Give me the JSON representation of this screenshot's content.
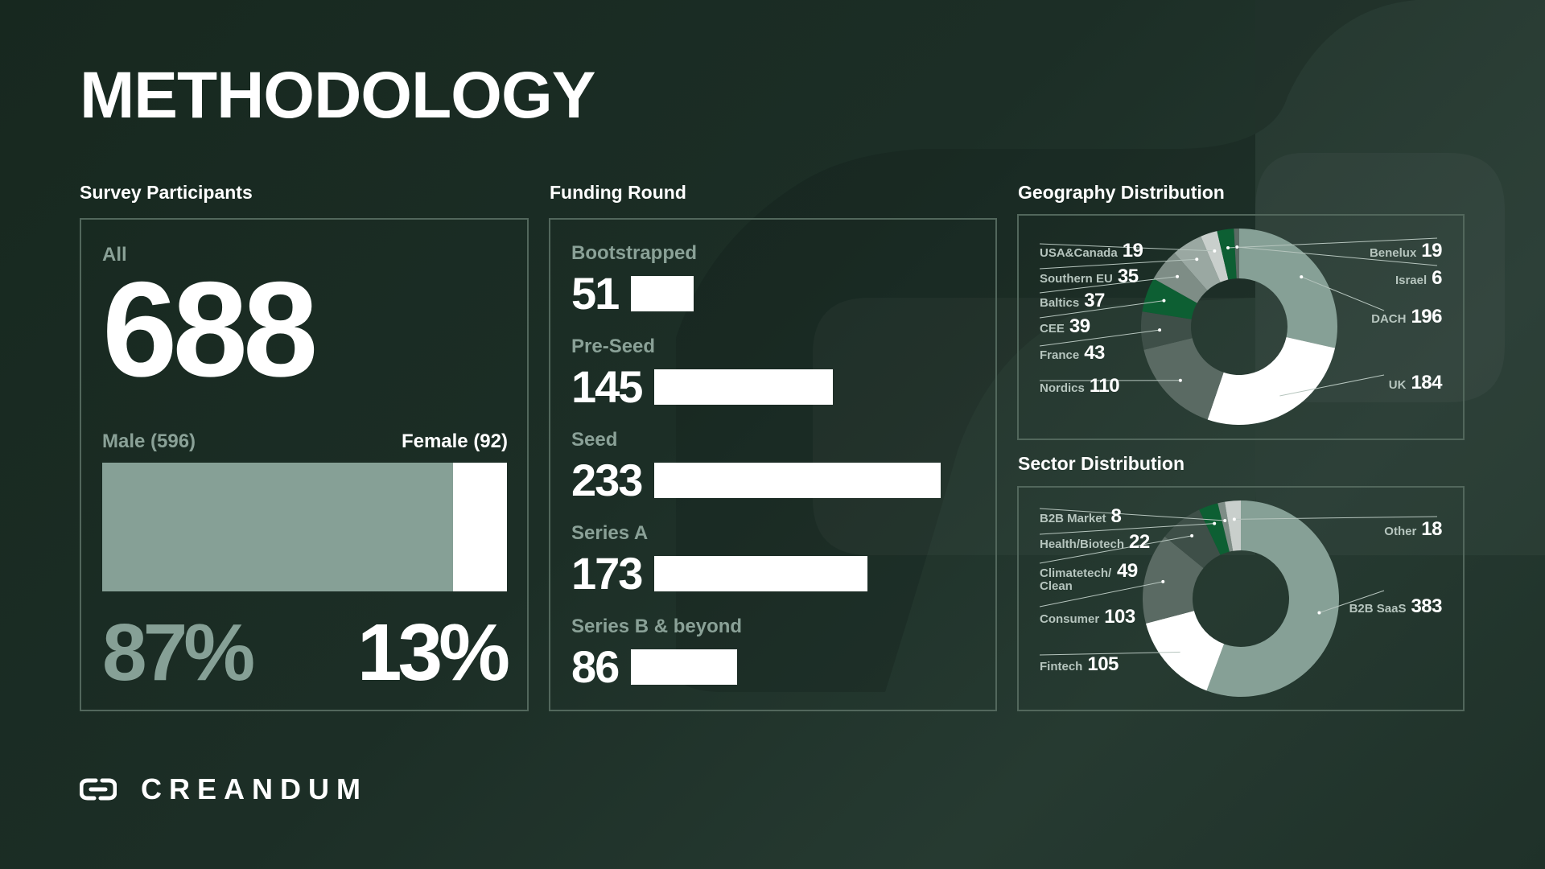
{
  "page": {
    "title": "METHODOLOGY"
  },
  "colors": {
    "light_green": "#86a096",
    "white": "#ffffff",
    "dark_grey": "#5a6a63",
    "light_grey": "#c9cfcc",
    "mid_grey": "#7e8d86",
    "green": "#0d5f33",
    "border": "#52675c"
  },
  "survey": {
    "section_label": "Survey Participants",
    "all_label": "All",
    "all_value": "688",
    "male_label": "Male (596)",
    "female_label": "Female (92)",
    "male_pct": "87%",
    "female_pct": "13%"
  },
  "funding": {
    "section_label": "Funding Round"
  },
  "geography": {
    "section_label": "Geography Distribution"
  },
  "sector": {
    "section_label": "Sector Distribution"
  },
  "logo": {
    "text": "CREANDUM",
    "icon": "chain-link-icon"
  },
  "chart_data": [
    {
      "type": "bar",
      "title": "Survey Participants",
      "categories": [
        "Male (596)",
        "Female (92)"
      ],
      "values": [
        596,
        92
      ],
      "total": 688
    },
    {
      "type": "bar",
      "title": "Funding Round",
      "categories": [
        "Bootstrapped",
        "Pre-Seed",
        "Seed",
        "Series A",
        "Series B & beyond"
      ],
      "values": [
        51,
        145,
        233,
        173,
        86
      ]
    },
    {
      "type": "pie",
      "title": "Geography Distribution",
      "categories": [
        "DACH",
        "UK",
        "Nordics",
        "France",
        "CEE",
        "Baltics",
        "Southern EU",
        "USA&Canada",
        "Benelux",
        "Israel"
      ],
      "values": [
        196,
        184,
        110,
        43,
        39,
        37,
        35,
        19,
        19,
        6
      ],
      "colors": [
        "#86a096",
        "#ffffff",
        "#5a6a63",
        "#3e4f48",
        "#0d5f33",
        "#7e8d86",
        "#9aa8a2",
        "#c9cfcc",
        "#0d5f33",
        "#5a6a63"
      ]
    },
    {
      "type": "pie",
      "title": "Sector Distribution",
      "categories": [
        "B2B SaaS",
        "Fintech",
        "Consumer",
        "Climatetech/ Clean",
        "Health/Biotech",
        "B2B Market",
        "Other"
      ],
      "values": [
        383,
        105,
        103,
        49,
        22,
        8,
        18
      ],
      "colors": [
        "#86a096",
        "#ffffff",
        "#5a6a63",
        "#3e4f48",
        "#0d5f33",
        "#7e8d86",
        "#c9cfcc"
      ]
    }
  ]
}
